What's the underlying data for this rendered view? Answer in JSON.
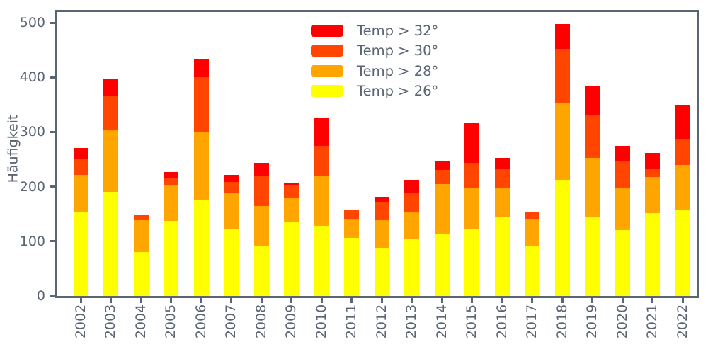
{
  "style": {
    "axis_color": "#5a6473",
    "background": "#ffffff",
    "series_colors": {
      "temp_gt_32": "#ff0000",
      "temp_gt_30": "#ff4500",
      "temp_gt_28": "#ffa500",
      "temp_gt_26": "#ffff00"
    }
  },
  "legend": {
    "items": [
      {
        "label": "Temp > 32°",
        "color": "#ff0000"
      },
      {
        "label": "Temp > 30°",
        "color": "#ff4500"
      },
      {
        "label": "Temp > 28°",
        "color": "#ffa500"
      },
      {
        "label": "Temp > 26°",
        "color": "#ffff00"
      }
    ]
  },
  "chart_data": {
    "type": "bar",
    "stacked": true,
    "title": "",
    "xlabel": "",
    "ylabel": "Häufigkeit",
    "categories": [
      "2002",
      "2003",
      "2004",
      "2005",
      "2006",
      "2007",
      "2008",
      "2009",
      "2010",
      "2011",
      "2012",
      "2013",
      "2014",
      "2015",
      "2016",
      "2017",
      "2018",
      "2019",
      "2020",
      "2021",
      "2022"
    ],
    "series": [
      {
        "name": "Temp > 26°",
        "color": "#ffff00",
        "values": [
          153,
          190,
          80,
          137,
          176,
          123,
          92,
          136,
          128,
          106,
          88,
          104,
          114,
          123,
          144,
          91,
          213,
          144,
          120,
          151,
          157
        ]
      },
      {
        "name": "Temp > 28°",
        "color": "#ffa500",
        "values": [
          69,
          114,
          59,
          65,
          124,
          66,
          72,
          44,
          92,
          34,
          50,
          49,
          91,
          75,
          54,
          50,
          139,
          108,
          77,
          66,
          83
        ]
      },
      {
        "name": "Temp > 30°",
        "color": "#ff4500",
        "values": [
          28,
          63,
          10,
          13,
          100,
          20,
          56,
          23,
          55,
          18,
          33,
          36,
          25,
          46,
          34,
          13,
          100,
          78,
          49,
          16,
          48
        ]
      },
      {
        "name": "Temp > 32°",
        "color": "#ff0000",
        "values": [
          21,
          30,
          0,
          12,
          32,
          13,
          23,
          4,
          51,
          0,
          10,
          23,
          18,
          72,
          21,
          0,
          46,
          54,
          29,
          29,
          62
        ]
      }
    ],
    "totals": [
      271,
      397,
      149,
      227,
      432,
      222,
      243,
      207,
      326,
      158,
      181,
      212,
      248,
      316,
      253,
      154,
      498,
      384,
      275,
      262,
      350
    ],
    "ylim": [
      0,
      520
    ],
    "yticks": [
      0,
      100,
      200,
      300,
      400,
      500
    ],
    "grid": false,
    "legend_position": "upper center, inside plot, no frame",
    "x_tick_rotation": 90
  }
}
